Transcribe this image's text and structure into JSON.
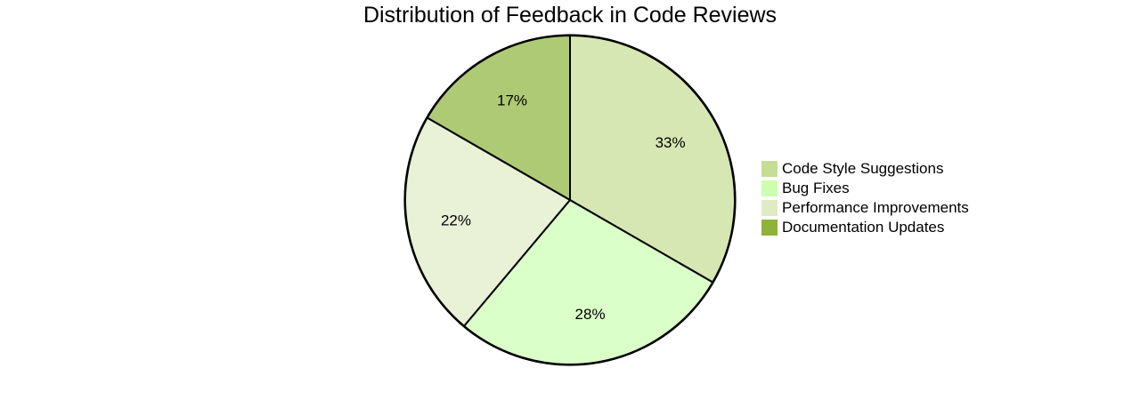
{
  "chart_data": {
    "type": "pie",
    "title": "Distribution of Feedback in Code Reviews",
    "categories": [
      "Code Style Suggestions",
      "Bug Fixes",
      "Performance Improvements",
      "Documentation Updates"
    ],
    "values": [
      30,
      25,
      20,
      15
    ],
    "percent_labels": [
      "33%",
      "28%",
      "22%",
      "17%"
    ],
    "colors": [
      "#c6dd94",
      "#ccffb0",
      "#dfebc4",
      "#8db33a"
    ],
    "legend_position": "right",
    "start_angle": "12 o'clock, clockwise"
  }
}
